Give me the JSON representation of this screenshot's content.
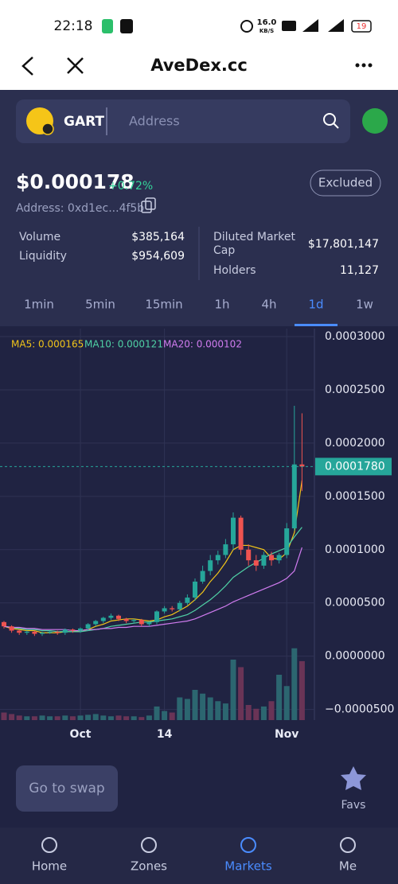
{
  "status_bar": {
    "time": "22:18",
    "speed": "16.0",
    "speed_unit": "KB/S",
    "battery": "19"
  },
  "nav": {
    "title": "AveDex.cc"
  },
  "search": {
    "token": "GART",
    "placeholder": "Address"
  },
  "price": {
    "value": "$0.000178",
    "change": "+0.72%",
    "tag": "Excluded",
    "address": "Address: 0xd1ec...4f5b"
  },
  "stats": [
    {
      "label": "Volume",
      "value": "$385,164"
    },
    {
      "label": "Liquidity",
      "value": "$954,609"
    },
    {
      "label": [
        "Diluted Market",
        "Cap"
      ],
      "value": "$17,801,147"
    },
    {
      "label": "Holders",
      "value": "11,127"
    }
  ],
  "tabs": [
    "1min",
    "5min",
    "15min",
    "1h",
    "4h",
    "1d",
    "1w"
  ],
  "active_tab": "1d",
  "bottom": {
    "button": "Go to swap",
    "favs": "Favs",
    "nav": [
      "Home",
      "Zones",
      "Markets",
      "Me"
    ],
    "active_nav": "Markets"
  },
  "chart_data": {
    "type": "candlestick",
    "categories": [
      null,
      null,
      null,
      null,
      null,
      null,
      null,
      null,
      null,
      null,
      "Oct",
      null,
      null,
      null,
      null,
      null,
      null,
      null,
      null,
      null,
      null,
      "14",
      null,
      null,
      null,
      null,
      null,
      null,
      null,
      null,
      null,
      null,
      null,
      null,
      null,
      null,
      null,
      "Nov",
      null,
      null
    ],
    "open": [
      3.2e-05,
      2.8e-05,
      2.4e-05,
      2.2e-05,
      2.3e-05,
      2.1e-05,
      2.2e-05,
      2.3e-05,
      2.2e-05,
      2.5e-05,
      2.4e-05,
      2.6e-05,
      3e-05,
      3.3e-05,
      3.6e-05,
      3.8e-05,
      3.5e-05,
      3.3e-05,
      3.4e-05,
      3e-05,
      3.2e-05,
      4.2e-05,
      4.5e-05,
      4.4e-05,
      5e-05,
      5.5e-05,
      7e-05,
      8e-05,
      9e-05,
      9.5e-05,
      0.000105,
      0.00013,
      0.0001,
      9e-05,
      8.5e-05,
      9.5e-05,
      9e-05,
      9.5e-05,
      0.00012,
      0.00018
    ],
    "high": [
      3.3e-05,
      2.9e-05,
      2.5e-05,
      2.4e-05,
      2.4e-05,
      2.3e-05,
      2.4e-05,
      2.4e-05,
      2.6e-05,
      2.6e-05,
      2.7e-05,
      3.1e-05,
      3.4e-05,
      3.7e-05,
      4e-05,
      3.9e-05,
      3.6e-05,
      3.5e-05,
      3.5e-05,
      3.3e-05,
      4.3e-05,
      4.7e-05,
      4.7e-05,
      5.2e-05,
      5.8e-05,
      7.3e-05,
      8.5e-05,
      9.5e-05,
      9.9e-05,
      0.00011,
      0.000135,
      0.000132,
      0.000105,
      9.5e-05,
      9.8e-05,
      9.8e-05,
      9.7e-05,
      0.000125,
      0.000235,
      0.000228
    ],
    "low": [
      2.6e-05,
      2.2e-05,
      2e-05,
      2e-05,
      1.9e-05,
      1.9e-05,
      2.1e-05,
      2e-05,
      2e-05,
      2.2e-05,
      2.2e-05,
      2.4e-05,
      2.8e-05,
      3.1e-05,
      3.4e-05,
      3.3e-05,
      3.1e-05,
      3.1e-05,
      2.8e-05,
      2.8e-05,
      3e-05,
      4e-05,
      4.2e-05,
      4.2e-05,
      4.8e-05,
      5.2e-05,
      6.8e-05,
      7.6e-05,
      8.6e-05,
      9.2e-05,
      0.0001,
      9.5e-05,
      8.5e-05,
      8e-05,
      8.2e-05,
      8.5e-05,
      8.7e-05,
      9.2e-05,
      0.000118,
      0.000155
    ],
    "close": [
      2.8e-05,
      2.4e-05,
      2.2e-05,
      2.3e-05,
      2.1e-05,
      2.2e-05,
      2.3e-05,
      2.2e-05,
      2.5e-05,
      2.4e-05,
      2.6e-05,
      3e-05,
      3.3e-05,
      3.6e-05,
      3.8e-05,
      3.5e-05,
      3.3e-05,
      3.4e-05,
      3e-05,
      3.2e-05,
      4.2e-05,
      4.5e-05,
      4.4e-05,
      5e-05,
      5.5e-05,
      7e-05,
      8e-05,
      9e-05,
      9.5e-05,
      0.000105,
      0.00013,
      0.0001,
      9e-05,
      8.5e-05,
      9.5e-05,
      9e-05,
      9.5e-05,
      0.00012,
      0.00018,
      0.000178
    ],
    "volume": [
      10,
      8,
      6,
      5,
      5,
      6,
      5,
      5,
      6,
      5,
      6,
      7,
      8,
      6,
      5,
      6,
      5,
      5,
      4,
      6,
      18,
      12,
      10,
      30,
      28,
      40,
      35,
      30,
      25,
      22,
      80,
      70,
      20,
      15,
      18,
      25,
      60,
      45,
      95,
      78
    ],
    "up_color": "#26a69a",
    "down_color": "#ef5350",
    "up_volume_color": "#2c6670",
    "down_volume_color": "#6a3456",
    "series": [
      {
        "name": "MA5: 0.000165",
        "color": "#f0c419",
        "values": [
          2.8e-05,
          2.6e-05,
          2.5e-05,
          2.4e-05,
          2.4e-05,
          2.2e-05,
          2.2e-05,
          2.2e-05,
          2.3e-05,
          2.3e-05,
          2.4e-05,
          2.5e-05,
          2.8e-05,
          3e-05,
          3.3e-05,
          3.4e-05,
          3.5e-05,
          3.5e-05,
          3.4e-05,
          3.3e-05,
          3.4e-05,
          3.7e-05,
          3.9e-05,
          4.3e-05,
          4.7e-05,
          5.3e-05,
          6e-05,
          7e-05,
          7.8e-05,
          8.8e-05,
          0.0001,
          0.000104,
          0.000104,
          0.000102,
          0.0001,
          9.2e-05,
          9.1e-05,
          9.7e-05,
          0.000116,
          0.000165
        ]
      },
      {
        "name": "MA10: 0.000121",
        "color": "#4fd1a5",
        "values": [
          2.8e-05,
          2.7e-05,
          2.6e-05,
          2.5e-05,
          2.5e-05,
          2.4e-05,
          2.4e-05,
          2.3e-05,
          2.3e-05,
          2.3e-05,
          2.3e-05,
          2.4e-05,
          2.5e-05,
          2.6e-05,
          2.8e-05,
          2.9e-05,
          3e-05,
          3.1e-05,
          3.2e-05,
          3.2e-05,
          3.3e-05,
          3.4e-05,
          3.5e-05,
          3.7e-05,
          3.9e-05,
          4.3e-05,
          4.8e-05,
          5.3e-05,
          5.9e-05,
          6.6e-05,
          7.4e-05,
          7.9e-05,
          8.4e-05,
          8.8e-05,
          9.2e-05,
          9.6e-05,
          9.9e-05,
          0.000102,
          0.000112,
          0.000121
        ]
      },
      {
        "name": "MA20: 0.000102",
        "color": "#d17cf0",
        "values": [
          2.8e-05,
          2.7e-05,
          2.7e-05,
          2.6e-05,
          2.6e-05,
          2.5e-05,
          2.5e-05,
          2.5e-05,
          2.5e-05,
          2.4e-05,
          2.4e-05,
          2.5e-05,
          2.5e-05,
          2.6e-05,
          2.6e-05,
          2.7e-05,
          2.7e-05,
          2.8e-05,
          2.8e-05,
          2.8e-05,
          2.9e-05,
          3e-05,
          3.1e-05,
          3.2e-05,
          3.3e-05,
          3.5e-05,
          3.8e-05,
          4.1e-05,
          4.4e-05,
          4.7e-05,
          5.1e-05,
          5.4e-05,
          5.7e-05,
          6e-05,
          6.3e-05,
          6.6e-05,
          6.9e-05,
          7.3e-05,
          8e-05,
          0.000102
        ]
      }
    ],
    "ylim": [
      -6e-05,
      0.0003075
    ],
    "yticks": [
      {
        "value": 0.0003,
        "label": "0.0003000"
      },
      {
        "value": 0.00025,
        "label": "0.0002500"
      },
      {
        "value": 0.0002,
        "label": "0.0002000"
      },
      {
        "value": 0.00015,
        "label": "0.0001500"
      },
      {
        "value": 0.0001,
        "label": "0.0001000"
      },
      {
        "value": 5e-05,
        "label": "0.0000500"
      },
      {
        "value": 0,
        "label": "0.0000000"
      },
      {
        "value": -5e-05,
        "label": "−0.0000500"
      }
    ],
    "last_price": {
      "value": 0.000178,
      "label": "0.0001780"
    },
    "grid": true
  }
}
